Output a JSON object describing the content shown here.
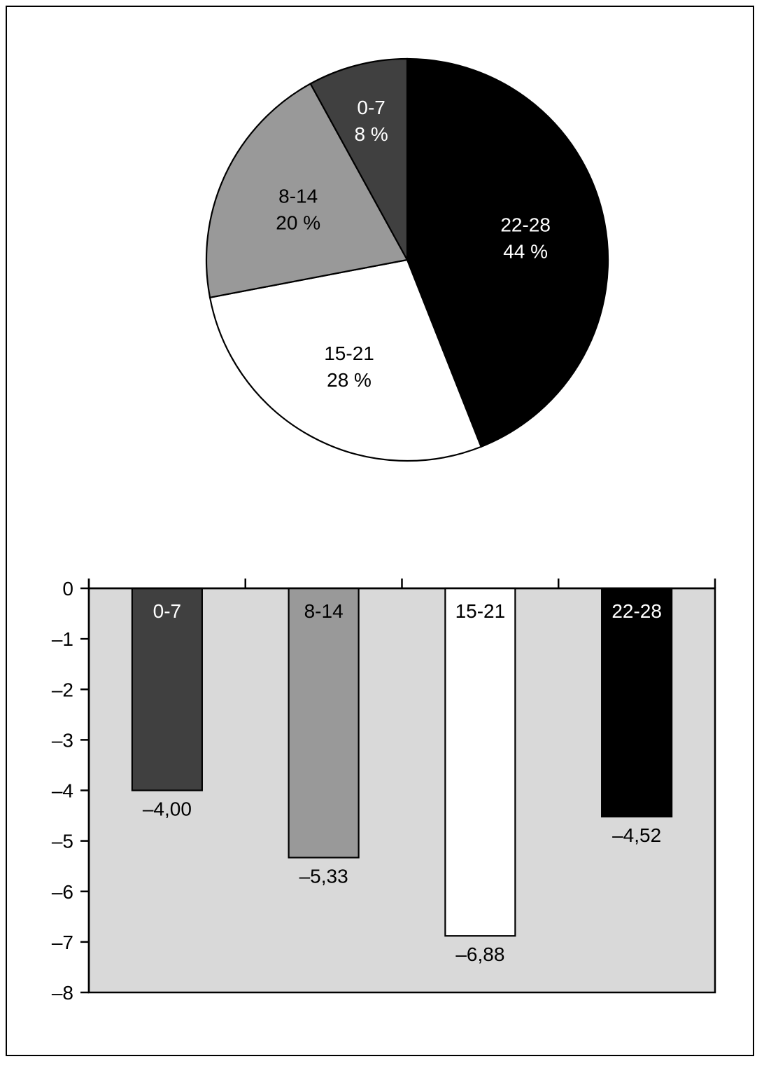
{
  "colors": {
    "frame": "#000000",
    "plot_background": "#d9d9d9"
  },
  "chart_data": [
    {
      "type": "pie",
      "title": "",
      "slices": [
        {
          "label": "22-28",
          "value": 44,
          "value_label": "44 %",
          "color": "#000000",
          "text_color": "#ffffff"
        },
        {
          "label": "15-21",
          "value": 28,
          "value_label": "28 %",
          "color": "#ffffff",
          "text_color": "#000000"
        },
        {
          "label": "8-14",
          "value": 20,
          "value_label": "20 %",
          "color": "#999999",
          "text_color": "#000000"
        },
        {
          "label": "0-7",
          "value": 8,
          "value_label": "8 %",
          "color": "#404040",
          "text_color": "#ffffff"
        }
      ],
      "start": "12 o'clock",
      "direction": "clockwise"
    },
    {
      "type": "bar",
      "title": "",
      "xlabel": "",
      "ylabel": "",
      "categories": [
        "0-7",
        "8-14",
        "15-21",
        "22-28"
      ],
      "values": [
        -4.0,
        -5.33,
        -6.88,
        -4.52
      ],
      "value_labels": [
        "–4,00",
        "–5,33",
        "–6,88",
        "–4,52"
      ],
      "bar_colors": [
        "#404040",
        "#999999",
        "#ffffff",
        "#000000"
      ],
      "category_label_colors": [
        "#ffffff",
        "#000000",
        "#000000",
        "#ffffff"
      ],
      "ylim": [
        -8,
        0
      ],
      "yticks": [
        0,
        -1,
        -2,
        -3,
        -4,
        -5,
        -6,
        -7,
        -8
      ],
      "ytick_labels": [
        "0",
        "–1",
        "–2",
        "–3",
        "–4",
        "–5",
        "–6",
        "–7",
        "–8"
      ],
      "grid": false,
      "legend": "none"
    }
  ]
}
